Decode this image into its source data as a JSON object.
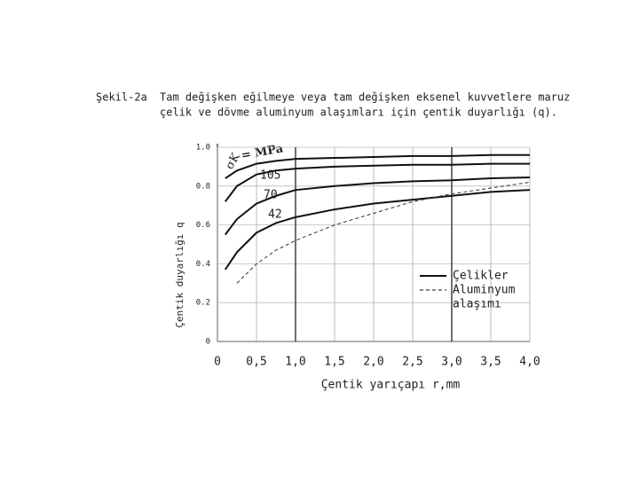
{
  "chart_data": {
    "type": "line",
    "title_label": "Şekil-2a",
    "title": [
      "Tam değişken eğilmeye veya tam değişken eksenel kuvvetlere maruz",
      "çelik ve dövme aluminyum alaşımları için çentik duyarlığı (q)."
    ],
    "x_label": "Çentik yarıçapı r,mm",
    "y_label": "Çentik duyarlığı  q",
    "annotation": [
      "σK",
      "= MPa"
    ],
    "curve_labels": [
      "105",
      "70",
      "42"
    ],
    "x": [
      0.1,
      0.25,
      0.5,
      0.75,
      1,
      1.5,
      2,
      2.5,
      3,
      3.5,
      4
    ],
    "series": [
      {
        "style": "solid",
        "color": "#111",
        "values": [
          0.84,
          0.88,
          0.915,
          0.93,
          0.94,
          0.945,
          0.95,
          0.955,
          0.955,
          0.96,
          0.96
        ]
      },
      {
        "style": "solid",
        "color": "#111",
        "values": [
          0.72,
          0.8,
          0.86,
          0.88,
          0.89,
          0.9,
          0.905,
          0.91,
          0.91,
          0.915,
          0.915
        ]
      },
      {
        "style": "solid",
        "color": "#111",
        "values": [
          0.55,
          0.63,
          0.71,
          0.75,
          0.78,
          0.8,
          0.815,
          0.825,
          0.83,
          0.84,
          0.845
        ]
      },
      {
        "style": "solid",
        "color": "#111",
        "values": [
          0.37,
          0.46,
          0.56,
          0.61,
          0.64,
          0.68,
          0.71,
          0.73,
          0.75,
          0.77,
          0.78
        ]
      },
      {
        "style": "dashed",
        "color": "#333",
        "values": [
          null,
          0.3,
          0.4,
          0.47,
          0.52,
          0.6,
          0.66,
          0.72,
          0.76,
          0.79,
          0.82
        ]
      }
    ],
    "legend": [
      {
        "style": "solid",
        "label": [
          "Çelikler"
        ]
      },
      {
        "style": "dashed",
        "label": [
          "Aluminyum",
          "alaşımı"
        ]
      }
    ],
    "xlim": [
      0,
      4
    ],
    "ylim": [
      0,
      1
    ],
    "xticks": [
      0,
      {
        "value": 0.5,
        "label": "0,5"
      },
      {
        "value": 1,
        "label": "1,0"
      },
      {
        "value": 1.5,
        "label": "1,5"
      },
      {
        "value": 2,
        "label": "2,0"
      },
      {
        "value": 2.5,
        "label": "2,5"
      },
      {
        "value": 3,
        "label": "3,0"
      },
      {
        "value": 3.5,
        "label": "3,5"
      },
      {
        "value": 4,
        "label": "4,0"
      }
    ],
    "yticks": [
      0,
      0.2,
      0.4,
      0.6,
      0.8,
      {
        "value": 1,
        "label": "1.0"
      }
    ],
    "grid": true
  }
}
